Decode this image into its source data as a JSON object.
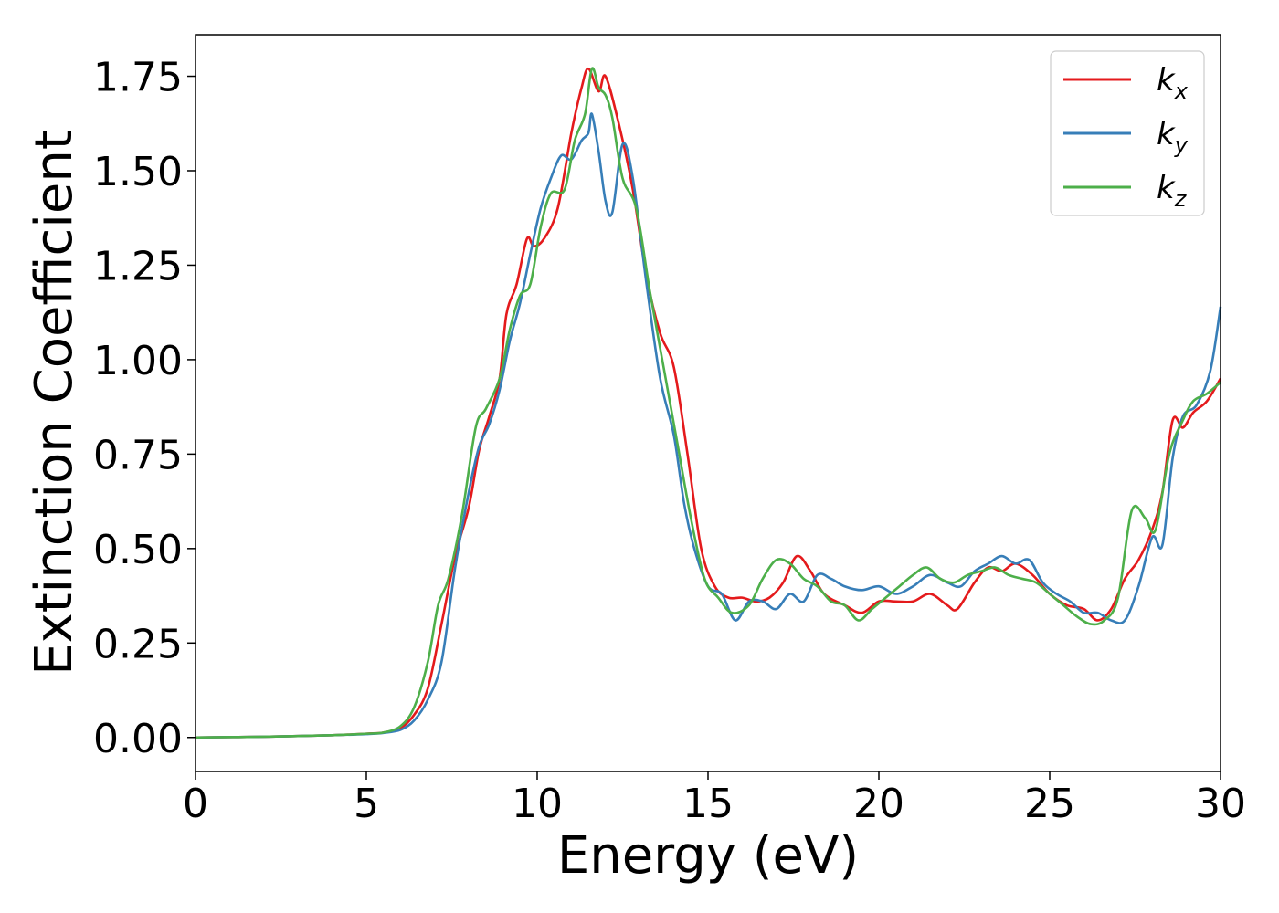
{
  "chart_data": {
    "type": "line",
    "title": "",
    "xlabel": "Energy (eV)",
    "ylabel": "Extinction Coefficient",
    "xlim": [
      0,
      30
    ],
    "ylim": [
      -0.09,
      1.86
    ],
    "xticks": [
      "0",
      "5",
      "10",
      "15",
      "20",
      "25",
      "30"
    ],
    "xtick_values": [
      0,
      5,
      10,
      15,
      20,
      25,
      30
    ],
    "yticks": [
      "0.00",
      "0.25",
      "0.50",
      "0.75",
      "1.00",
      "1.25",
      "1.50",
      "1.75"
    ],
    "ytick_values": [
      0,
      0.25,
      0.5,
      0.75,
      1.0,
      1.25,
      1.5,
      1.75
    ],
    "grid": false,
    "legend_position": "top-right",
    "series": [
      {
        "name": "k_x",
        "label_base": "k",
        "label_sub": "x",
        "color": "#e41a1c",
        "points": [
          [
            0,
            0
          ],
          [
            2,
            0.002
          ],
          [
            4,
            0.006
          ],
          [
            5,
            0.01
          ],
          [
            5.5,
            0.013
          ],
          [
            6,
            0.025
          ],
          [
            6.4,
            0.06
          ],
          [
            6.8,
            0.13
          ],
          [
            7.2,
            0.3
          ],
          [
            7.6,
            0.48
          ],
          [
            8,
            0.61
          ],
          [
            8.3,
            0.76
          ],
          [
            8.6,
            0.85
          ],
          [
            8.9,
            0.95
          ],
          [
            9.1,
            1.12
          ],
          [
            9.4,
            1.2
          ],
          [
            9.7,
            1.32
          ],
          [
            9.9,
            1.3
          ],
          [
            10.2,
            1.32
          ],
          [
            10.6,
            1.4
          ],
          [
            11,
            1.6
          ],
          [
            11.3,
            1.72
          ],
          [
            11.5,
            1.77
          ],
          [
            11.8,
            1.71
          ],
          [
            12,
            1.75
          ],
          [
            12.4,
            1.62
          ],
          [
            12.8,
            1.45
          ],
          [
            13.2,
            1.22
          ],
          [
            13.6,
            1.07
          ],
          [
            14,
            0.98
          ],
          [
            14.4,
            0.75
          ],
          [
            14.8,
            0.5
          ],
          [
            15.2,
            0.4
          ],
          [
            15.6,
            0.37
          ],
          [
            16,
            0.37
          ],
          [
            16.4,
            0.36
          ],
          [
            16.8,
            0.37
          ],
          [
            17.2,
            0.41
          ],
          [
            17.6,
            0.48
          ],
          [
            18,
            0.44
          ],
          [
            18.4,
            0.38
          ],
          [
            19,
            0.35
          ],
          [
            19.5,
            0.33
          ],
          [
            20,
            0.36
          ],
          [
            20.5,
            0.36
          ],
          [
            21,
            0.36
          ],
          [
            21.5,
            0.38
          ],
          [
            22,
            0.35
          ],
          [
            22.3,
            0.34
          ],
          [
            22.8,
            0.41
          ],
          [
            23.2,
            0.45
          ],
          [
            23.6,
            0.44
          ],
          [
            24,
            0.46
          ],
          [
            24.5,
            0.43
          ],
          [
            25,
            0.38
          ],
          [
            25.5,
            0.35
          ],
          [
            26,
            0.34
          ],
          [
            26.4,
            0.31
          ],
          [
            26.8,
            0.34
          ],
          [
            27.2,
            0.42
          ],
          [
            27.6,
            0.47
          ],
          [
            28,
            0.55
          ],
          [
            28.3,
            0.65
          ],
          [
            28.6,
            0.84
          ],
          [
            28.9,
            0.82
          ],
          [
            29.2,
            0.86
          ],
          [
            29.6,
            0.89
          ],
          [
            30,
            0.95
          ]
        ]
      },
      {
        "name": "k_y",
        "label_base": "k",
        "label_sub": "y",
        "color": "#377eb8",
        "points": [
          [
            0,
            0
          ],
          [
            2,
            0.002
          ],
          [
            4,
            0.006
          ],
          [
            5,
            0.009
          ],
          [
            5.5,
            0.012
          ],
          [
            6,
            0.02
          ],
          [
            6.4,
            0.045
          ],
          [
            6.8,
            0.1
          ],
          [
            7.2,
            0.2
          ],
          [
            7.6,
            0.45
          ],
          [
            8,
            0.65
          ],
          [
            8.3,
            0.77
          ],
          [
            8.6,
            0.83
          ],
          [
            8.9,
            0.92
          ],
          [
            9.2,
            1.05
          ],
          [
            9.5,
            1.15
          ],
          [
            9.8,
            1.28
          ],
          [
            10.1,
            1.4
          ],
          [
            10.4,
            1.48
          ],
          [
            10.7,
            1.54
          ],
          [
            11,
            1.53
          ],
          [
            11.3,
            1.58
          ],
          [
            11.5,
            1.6
          ],
          [
            11.6,
            1.65
          ],
          [
            11.8,
            1.55
          ],
          [
            12,
            1.42
          ],
          [
            12.2,
            1.39
          ],
          [
            12.5,
            1.57
          ],
          [
            12.8,
            1.48
          ],
          [
            13.2,
            1.2
          ],
          [
            13.6,
            0.95
          ],
          [
            14,
            0.8
          ],
          [
            14.3,
            0.62
          ],
          [
            14.6,
            0.5
          ],
          [
            15,
            0.4
          ],
          [
            15.4,
            0.38
          ],
          [
            15.8,
            0.31
          ],
          [
            16.2,
            0.36
          ],
          [
            16.6,
            0.36
          ],
          [
            17,
            0.34
          ],
          [
            17.4,
            0.38
          ],
          [
            17.8,
            0.36
          ],
          [
            18.2,
            0.43
          ],
          [
            18.6,
            0.42
          ],
          [
            19,
            0.4
          ],
          [
            19.5,
            0.39
          ],
          [
            20,
            0.4
          ],
          [
            20.5,
            0.38
          ],
          [
            21,
            0.4
          ],
          [
            21.5,
            0.43
          ],
          [
            22,
            0.41
          ],
          [
            22.4,
            0.4
          ],
          [
            22.8,
            0.44
          ],
          [
            23.2,
            0.46
          ],
          [
            23.6,
            0.48
          ],
          [
            24,
            0.46
          ],
          [
            24.4,
            0.47
          ],
          [
            24.8,
            0.41
          ],
          [
            25.2,
            0.38
          ],
          [
            25.6,
            0.36
          ],
          [
            26,
            0.33
          ],
          [
            26.4,
            0.33
          ],
          [
            26.8,
            0.31
          ],
          [
            27.2,
            0.31
          ],
          [
            27.6,
            0.4
          ],
          [
            28,
            0.53
          ],
          [
            28.3,
            0.51
          ],
          [
            28.6,
            0.74
          ],
          [
            28.9,
            0.85
          ],
          [
            29.3,
            0.88
          ],
          [
            29.7,
            0.97
          ],
          [
            30,
            1.14
          ]
        ]
      },
      {
        "name": "k_z",
        "label_base": "k",
        "label_sub": "z",
        "color": "#4daf4a",
        "points": [
          [
            0,
            0
          ],
          [
            2,
            0.002
          ],
          [
            4,
            0.006
          ],
          [
            5,
            0.01
          ],
          [
            5.5,
            0.013
          ],
          [
            6,
            0.03
          ],
          [
            6.4,
            0.08
          ],
          [
            6.8,
            0.2
          ],
          [
            7.1,
            0.35
          ],
          [
            7.4,
            0.42
          ],
          [
            7.8,
            0.59
          ],
          [
            8.2,
            0.82
          ],
          [
            8.5,
            0.87
          ],
          [
            8.9,
            0.95
          ],
          [
            9.2,
            1.08
          ],
          [
            9.5,
            1.17
          ],
          [
            9.8,
            1.2
          ],
          [
            10.1,
            1.35
          ],
          [
            10.4,
            1.44
          ],
          [
            10.8,
            1.45
          ],
          [
            11.1,
            1.58
          ],
          [
            11.4,
            1.65
          ],
          [
            11.6,
            1.77
          ],
          [
            11.8,
            1.72
          ],
          [
            12,
            1.7
          ],
          [
            12.2,
            1.64
          ],
          [
            12.5,
            1.48
          ],
          [
            12.9,
            1.4
          ],
          [
            13.3,
            1.18
          ],
          [
            13.7,
            0.98
          ],
          [
            14.1,
            0.78
          ],
          [
            14.5,
            0.58
          ],
          [
            14.9,
            0.42
          ],
          [
            15.3,
            0.37
          ],
          [
            15.7,
            0.33
          ],
          [
            16.2,
            0.35
          ],
          [
            16.6,
            0.42
          ],
          [
            17,
            0.47
          ],
          [
            17.4,
            0.46
          ],
          [
            17.8,
            0.42
          ],
          [
            18.2,
            0.4
          ],
          [
            18.6,
            0.36
          ],
          [
            19,
            0.35
          ],
          [
            19.4,
            0.31
          ],
          [
            19.8,
            0.34
          ],
          [
            20.2,
            0.37
          ],
          [
            20.6,
            0.4
          ],
          [
            21,
            0.43
          ],
          [
            21.4,
            0.45
          ],
          [
            21.8,
            0.42
          ],
          [
            22.2,
            0.41
          ],
          [
            22.6,
            0.43
          ],
          [
            23,
            0.44
          ],
          [
            23.4,
            0.45
          ],
          [
            23.8,
            0.43
          ],
          [
            24.2,
            0.42
          ],
          [
            24.6,
            0.41
          ],
          [
            25,
            0.38
          ],
          [
            25.4,
            0.35
          ],
          [
            25.8,
            0.32
          ],
          [
            26.2,
            0.3
          ],
          [
            26.6,
            0.31
          ],
          [
            27,
            0.37
          ],
          [
            27.4,
            0.6
          ],
          [
            27.8,
            0.58
          ],
          [
            28.1,
            0.55
          ],
          [
            28.5,
            0.75
          ],
          [
            28.9,
            0.84
          ],
          [
            29.2,
            0.89
          ],
          [
            29.6,
            0.91
          ],
          [
            30,
            0.94
          ]
        ]
      }
    ]
  }
}
